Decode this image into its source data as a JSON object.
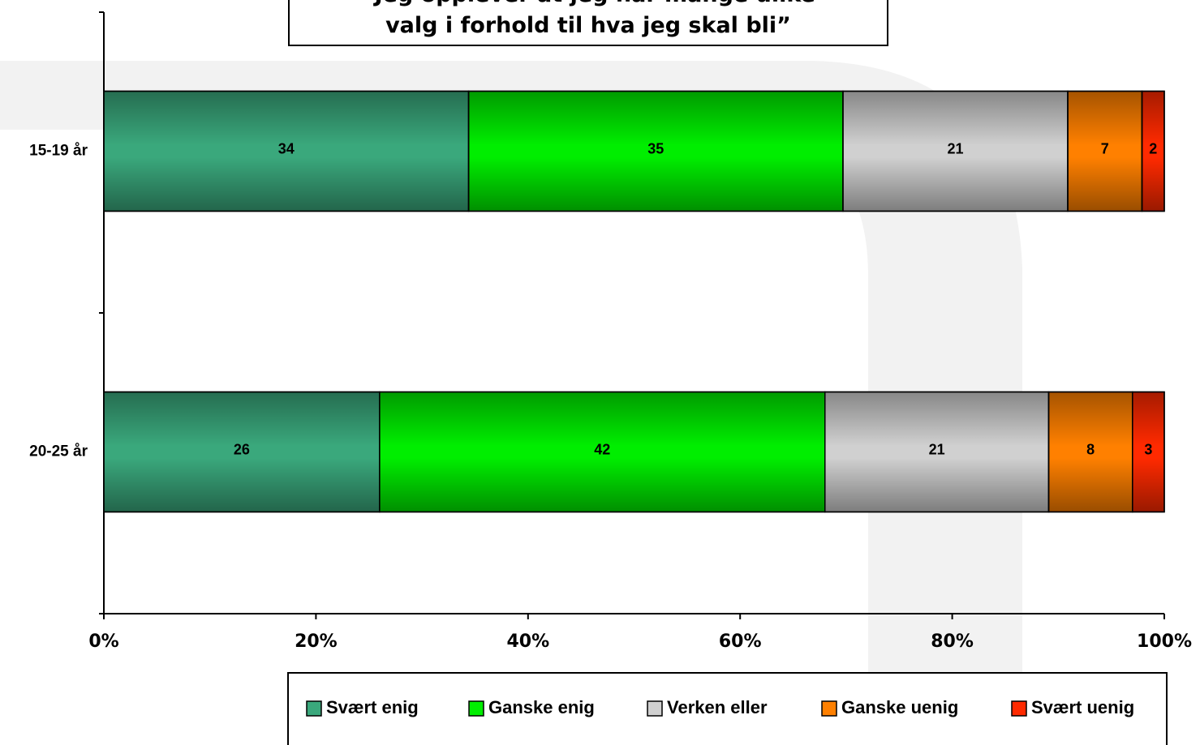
{
  "chart_data": {
    "type": "stacked_bar_horizontal",
    "title": "“Jeg opplever at jeg har mange ulike\nvalg i forhold til hva jeg skal bli”",
    "categories": [
      "15-19 år",
      "20-25 år"
    ],
    "series": [
      {
        "name": "Svært enig",
        "color": "#3aa87c",
        "values": [
          34.4,
          26
        ],
        "value_labels": [
          "34",
          "26"
        ]
      },
      {
        "name": "Ganske enig",
        "color": "#00ee00",
        "values": [
          35.3,
          42
        ],
        "value_labels": [
          "35",
          "42"
        ]
      },
      {
        "name": "Verken eller",
        "color": "#d0d0d0",
        "values": [
          21.2,
          21.1
        ],
        "value_labels": [
          "21",
          "21"
        ]
      },
      {
        "name": "Ganske uenig",
        "color": "#ff8000",
        "values": [
          7.0,
          7.9
        ],
        "value_labels": [
          "7",
          "8"
        ]
      },
      {
        "name": "Svært uenig",
        "color": "#ff2a00",
        "values": [
          2.1,
          3.0
        ],
        "value_labels": [
          "2",
          "3"
        ]
      }
    ],
    "xlim": [
      0,
      100
    ],
    "xticks": [
      {
        "value": 0,
        "label": "0%"
      },
      {
        "value": 20,
        "label": "20%"
      },
      {
        "value": 40,
        "label": "40%"
      },
      {
        "value": 60,
        "label": "60%"
      },
      {
        "value": 80,
        "label": "80%"
      },
      {
        "value": 100,
        "label": "100%"
      }
    ]
  }
}
